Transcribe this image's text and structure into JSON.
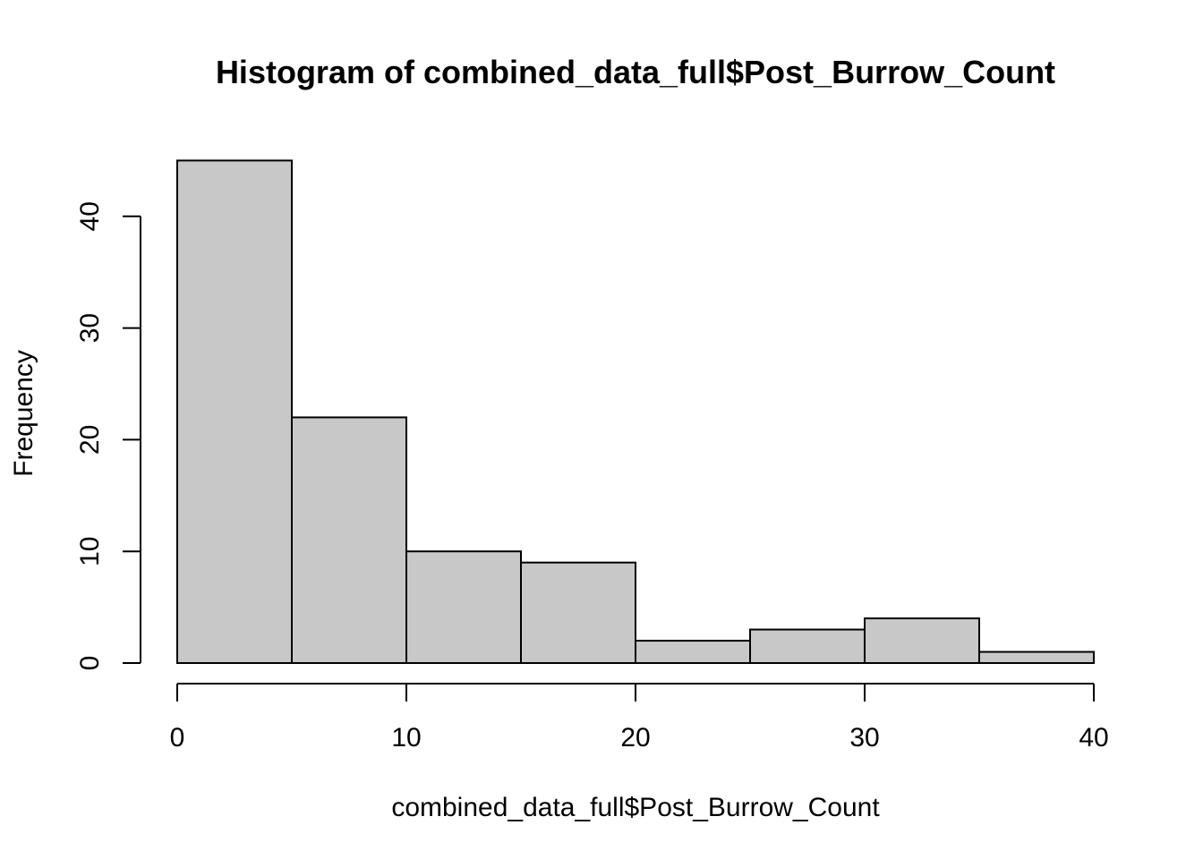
{
  "chart_data": {
    "type": "bar",
    "title": "Histogram of combined_data_full$Post_Burrow_Count",
    "xlabel": "combined_data_full$Post_Burrow_Count",
    "ylabel": "Frequency",
    "bins": [
      {
        "start": 0,
        "end": 5,
        "count": 45
      },
      {
        "start": 5,
        "end": 10,
        "count": 22
      },
      {
        "start": 10,
        "end": 15,
        "count": 10
      },
      {
        "start": 15,
        "end": 20,
        "count": 9
      },
      {
        "start": 20,
        "end": 25,
        "count": 2
      },
      {
        "start": 25,
        "end": 30,
        "count": 3
      },
      {
        "start": 30,
        "end": 35,
        "count": 4
      },
      {
        "start": 35,
        "end": 40,
        "count": 1
      }
    ],
    "xticks": [
      0,
      10,
      20,
      30,
      40
    ],
    "yticks": [
      0,
      10,
      20,
      30,
      40
    ],
    "xlim": [
      0,
      40
    ],
    "ylim": [
      0,
      45
    ],
    "grid": false,
    "colors": {
      "bar_fill": "#c8c8c8",
      "bar_stroke": "#000000"
    }
  }
}
